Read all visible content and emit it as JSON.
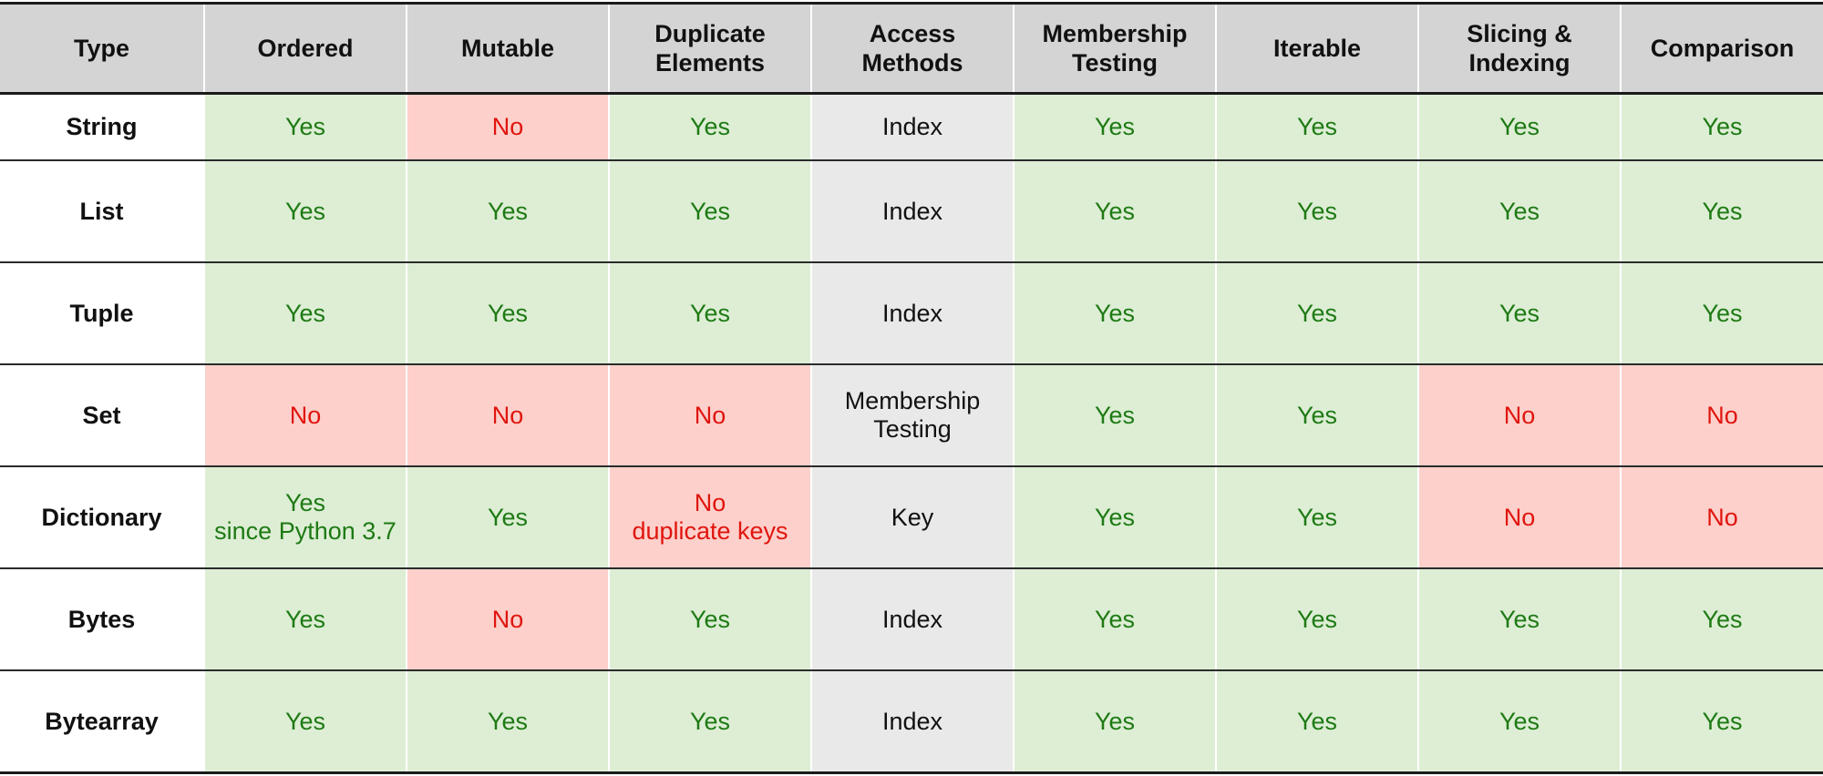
{
  "table": {
    "headers": [
      [
        "Type"
      ],
      [
        "Ordered"
      ],
      [
        "Mutable"
      ],
      [
        "Duplicate",
        "Elements"
      ],
      [
        "Access",
        "Methods"
      ],
      [
        "Membership",
        "Testing"
      ],
      [
        "Iterable"
      ],
      [
        "Slicing &",
        "Indexing"
      ],
      [
        "Comparison"
      ]
    ],
    "rows": [
      {
        "type": "String",
        "ordered": [
          "Yes"
        ],
        "mutable": [
          "No"
        ],
        "duplicate_elements": [
          "Yes"
        ],
        "access_methods": [
          "Index"
        ],
        "membership_testing": [
          "Yes"
        ],
        "iterable": [
          "Yes"
        ],
        "slicing_indexing": [
          "Yes"
        ],
        "comparison": [
          "Yes"
        ]
      },
      {
        "type": "List",
        "ordered": [
          "Yes"
        ],
        "mutable": [
          "Yes"
        ],
        "duplicate_elements": [
          "Yes"
        ],
        "access_methods": [
          "Index"
        ],
        "membership_testing": [
          "Yes"
        ],
        "iterable": [
          "Yes"
        ],
        "slicing_indexing": [
          "Yes"
        ],
        "comparison": [
          "Yes"
        ]
      },
      {
        "type": "Tuple",
        "ordered": [
          "Yes"
        ],
        "mutable": [
          "Yes"
        ],
        "duplicate_elements": [
          "Yes"
        ],
        "access_methods": [
          "Index"
        ],
        "membership_testing": [
          "Yes"
        ],
        "iterable": [
          "Yes"
        ],
        "slicing_indexing": [
          "Yes"
        ],
        "comparison": [
          "Yes"
        ]
      },
      {
        "type": "Set",
        "ordered": [
          "No"
        ],
        "mutable": [
          "No"
        ],
        "duplicate_elements": [
          "No"
        ],
        "access_methods": [
          "Membership",
          "Testing"
        ],
        "membership_testing": [
          "Yes"
        ],
        "iterable": [
          "Yes"
        ],
        "slicing_indexing": [
          "No"
        ],
        "comparison": [
          "No"
        ]
      },
      {
        "type": "Dictionary",
        "ordered": [
          "Yes",
          "since Python 3.7"
        ],
        "mutable": [
          "Yes"
        ],
        "duplicate_elements": [
          "No",
          "duplicate keys"
        ],
        "access_methods": [
          "Key"
        ],
        "membership_testing": [
          "Yes"
        ],
        "iterable": [
          "Yes"
        ],
        "slicing_indexing": [
          "No"
        ],
        "comparison": [
          "No"
        ]
      },
      {
        "type": "Bytes",
        "ordered": [
          "Yes"
        ],
        "mutable": [
          "No"
        ],
        "duplicate_elements": [
          "Yes"
        ],
        "access_methods": [
          "Index"
        ],
        "membership_testing": [
          "Yes"
        ],
        "iterable": [
          "Yes"
        ],
        "slicing_indexing": [
          "Yes"
        ],
        "comparison": [
          "Yes"
        ]
      },
      {
        "type": "Bytearray",
        "ordered": [
          "Yes"
        ],
        "mutable": [
          "Yes"
        ],
        "duplicate_elements": [
          "Yes"
        ],
        "access_methods": [
          "Index"
        ],
        "membership_testing": [
          "Yes"
        ],
        "iterable": [
          "Yes"
        ],
        "slicing_indexing": [
          "Yes"
        ],
        "comparison": [
          "Yes"
        ]
      }
    ]
  },
  "colors": {
    "header_bg": "#d4d4d4",
    "yes_bg": "#ddeed5",
    "yes_text": "#1e7a14",
    "no_bg": "#fdd0cb",
    "no_text": "#e0150e",
    "access_bg": "#e9e9e9"
  }
}
